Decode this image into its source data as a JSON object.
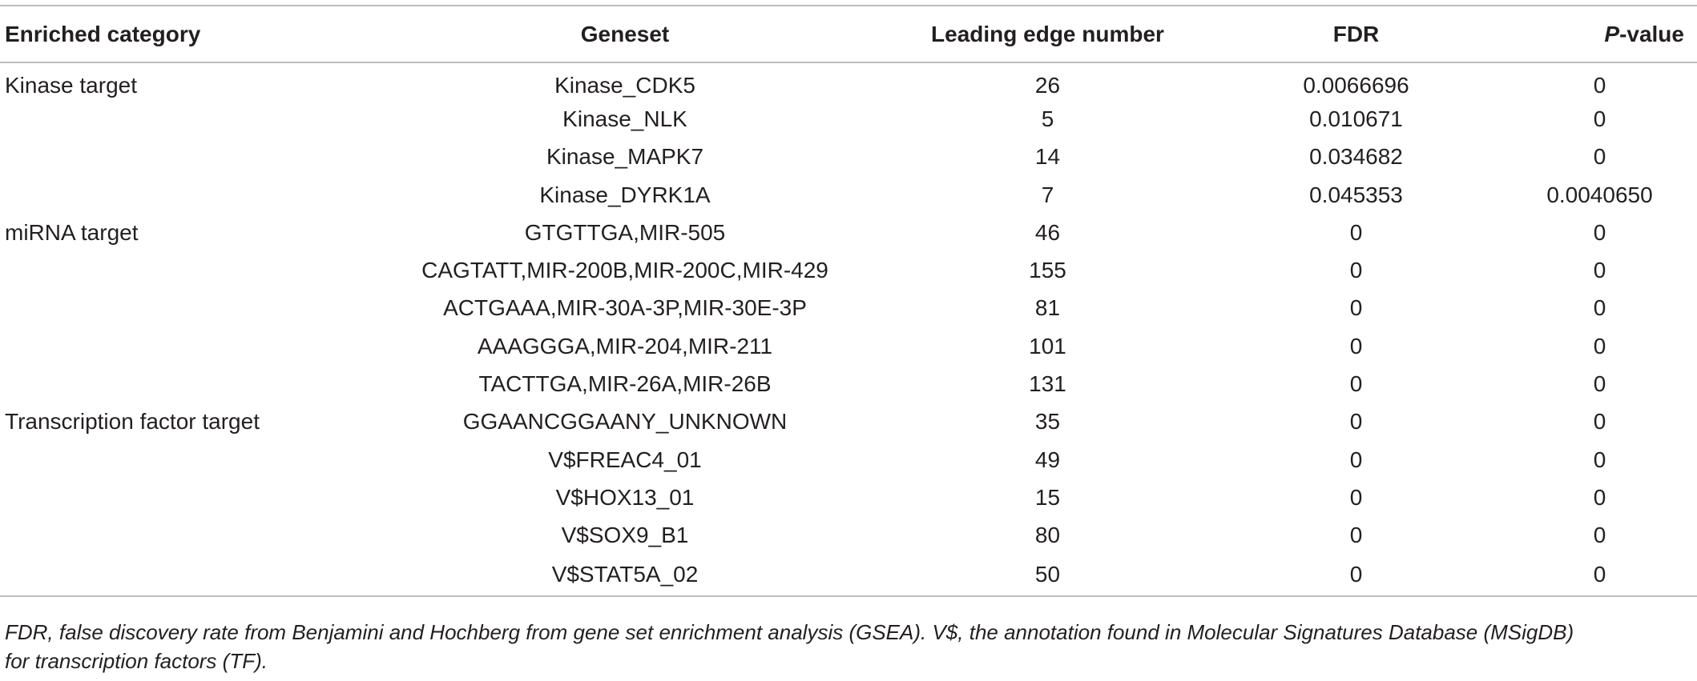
{
  "table": {
    "headers": {
      "category": "Enriched category",
      "geneset": "Geneset",
      "leading_edge": "Leading edge number",
      "fdr": "FDR",
      "pvalue_italic": "P",
      "pvalue_rest": "-value"
    },
    "rows": [
      {
        "category": "Kinase target",
        "geneset": "Kinase_CDK5",
        "leading_edge": "26",
        "fdr": "0.0066696",
        "pvalue": "0"
      },
      {
        "category": "",
        "geneset": "Kinase_NLK",
        "leading_edge": "5",
        "fdr": "0.010671",
        "pvalue": "0"
      },
      {
        "category": "",
        "geneset": "Kinase_MAPK7",
        "leading_edge": "14",
        "fdr": "0.034682",
        "pvalue": "0"
      },
      {
        "category": "",
        "geneset": "Kinase_DYRK1A",
        "leading_edge": "7",
        "fdr": "0.045353",
        "pvalue": "0.0040650"
      },
      {
        "category": "miRNA target",
        "geneset": "GTGTTGA,MIR-505",
        "leading_edge": "46",
        "fdr": "0",
        "pvalue": "0"
      },
      {
        "category": "",
        "geneset": "CAGTATT,MIR-200B,MIR-200C,MIR-429",
        "leading_edge": "155",
        "fdr": "0",
        "pvalue": "0"
      },
      {
        "category": "",
        "geneset": "ACTGAAA,MIR-30A-3P,MIR-30E-3P",
        "leading_edge": "81",
        "fdr": "0",
        "pvalue": "0"
      },
      {
        "category": "",
        "geneset": "AAAGGGA,MIR-204,MIR-211",
        "leading_edge": "101",
        "fdr": "0",
        "pvalue": "0"
      },
      {
        "category": "",
        "geneset": "TACTTGA,MIR-26A,MIR-26B",
        "leading_edge": "131",
        "fdr": "0",
        "pvalue": "0"
      },
      {
        "category": "Transcription factor target",
        "geneset": "GGAANCGGAANY_UNKNOWN",
        "leading_edge": "35",
        "fdr": "0",
        "pvalue": "0"
      },
      {
        "category": "",
        "geneset": "V$FREAC4_01",
        "leading_edge": "49",
        "fdr": "0",
        "pvalue": "0"
      },
      {
        "category": "",
        "geneset": "V$HOX13_01",
        "leading_edge": "15",
        "fdr": "0",
        "pvalue": "0"
      },
      {
        "category": "",
        "geneset": "V$SOX9_B1",
        "leading_edge": "80",
        "fdr": "0",
        "pvalue": "0"
      },
      {
        "category": "",
        "geneset": "V$STAT5A_02",
        "leading_edge": "50",
        "fdr": "0",
        "pvalue": "0"
      }
    ]
  },
  "footnote": {
    "line1": "FDR, false discovery rate from Benjamini and Hochberg from gene set enrichment analysis (GSEA). V$, the annotation found in Molecular Signatures Database (MSigDB)",
    "line2": "for transcription factors (TF)."
  }
}
